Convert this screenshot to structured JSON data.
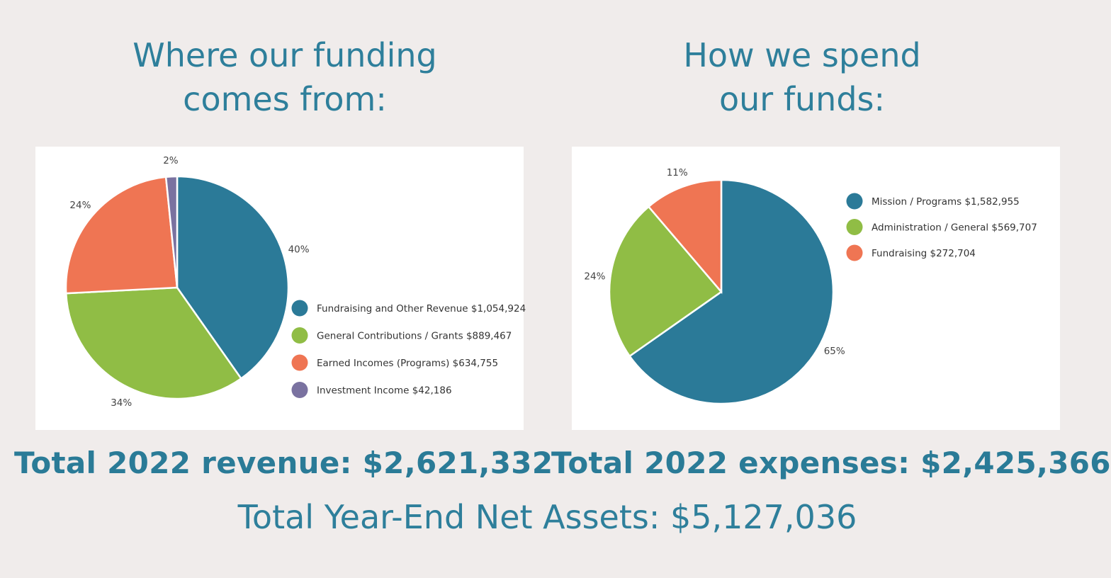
{
  "headings": {
    "left": [
      "Where our funding",
      "comes from:"
    ],
    "right": [
      "How we spend",
      "our funds:"
    ]
  },
  "totals": {
    "revenue": "Total 2022 revenue: $2,621,332",
    "expenses": "Total 2022 expenses: $2,425,366",
    "net_assets": "Total Year-End Net Assets: $5,127,036"
  },
  "chart_data": [
    {
      "type": "pie",
      "title": "",
      "slices": [
        {
          "label": "Fundraising and Other Revenue $1,054,924",
          "value": 1054924,
          "percent_label": "40%",
          "color": "#2b7a98"
        },
        {
          "label": "General Contributions / Grants $889,467",
          "value": 889467,
          "percent_label": "34%",
          "color": "#90bd45"
        },
        {
          "label": "Earned Incomes (Programs) $634,755",
          "value": 634755,
          "percent_label": "24%",
          "color": "#ef7553"
        },
        {
          "label": "Investment Income $42,186",
          "value": 42186,
          "percent_label": "2%",
          "color": "#7a72a0"
        }
      ],
      "legend_position": "right"
    },
    {
      "type": "pie",
      "title": "",
      "slices": [
        {
          "label": "Mission / Programs $1,582,955",
          "value": 1582955,
          "percent_label": "65%",
          "color": "#2b7a98"
        },
        {
          "label": "Administration / General $569,707",
          "value": 569707,
          "percent_label": "24%",
          "color": "#90bd45"
        },
        {
          "label": "Fundraising $272,704",
          "value": 272704,
          "percent_label": "11%",
          "color": "#ef7553"
        }
      ],
      "legend_position": "top-right"
    }
  ]
}
